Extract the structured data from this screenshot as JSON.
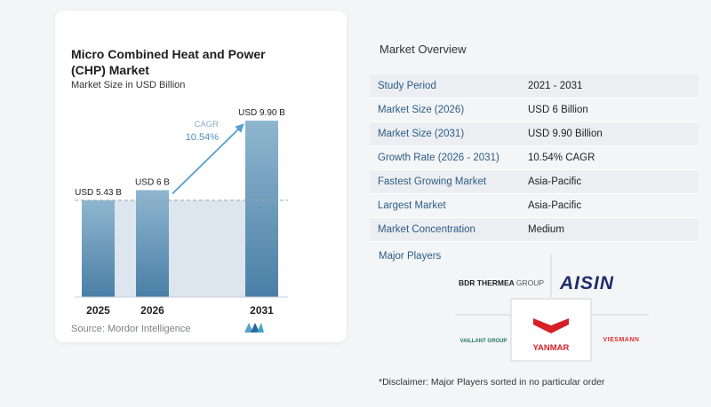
{
  "chart_data": {
    "type": "bar",
    "title": "Micro Combined Heat and Power (CHP) Market",
    "subtitle": "Market Size in USD Billion",
    "categories": [
      "2025",
      "2026",
      "2031"
    ],
    "values": [
      5.43,
      6,
      9.9
    ],
    "data_labels": [
      "USD 5.43 B",
      "USD 6 B",
      "USD 9.90 B"
    ],
    "cagr_label": "CAGR",
    "cagr_value": "10.54%",
    "ylim": [
      0,
      10.5
    ],
    "reference_line_value": 5.43,
    "colors": {
      "bar_top": "#8fb6cf",
      "bar_bottom": "#4a7fa6",
      "band": "#dde6ef",
      "arrow": "#5aa0d0",
      "ref_line": "#9aa4ae"
    }
  },
  "source": "Source: Mordor Intelligence",
  "overview": {
    "title": "Market Overview",
    "rows": [
      {
        "key": "Study Period",
        "value": "2021 - 2031"
      },
      {
        "key": "Market Size (2026)",
        "value": "USD 6 Billion"
      },
      {
        "key": "Market Size (2031)",
        "value": "USD 9.90 Billion"
      },
      {
        "key": "Growth Rate (2026 - 2031)",
        "value": "10.54% CAGR"
      },
      {
        "key": "Fastest Growing Market",
        "value": "Asia-Pacific"
      },
      {
        "key": "Largest Market",
        "value": "Asia-Pacific"
      },
      {
        "key": "Market Concentration",
        "value": "Medium"
      }
    ]
  },
  "players": {
    "title": "Major Players",
    "logos": {
      "bdr_a": "BDR THERMEA",
      "bdr_b": "GROUP",
      "aisin": "AISIN",
      "vaillant": "VAILLANT GROUP",
      "yanmar": "YANMAR",
      "viessmann": "VIESMANN"
    }
  },
  "disclaimer": "*Disclaimer: Major Players sorted in no particular order"
}
